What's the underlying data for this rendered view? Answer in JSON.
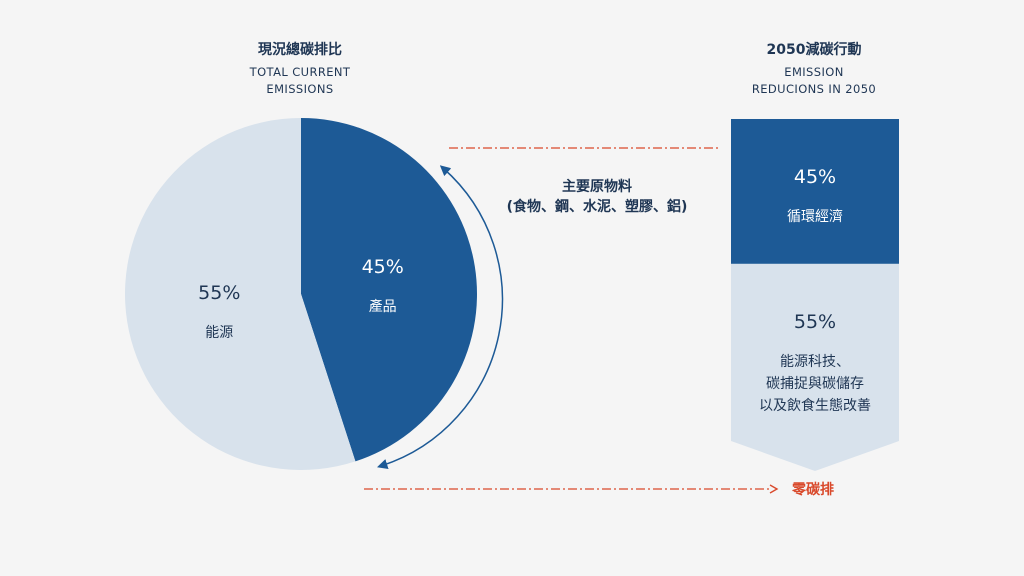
{
  "colors": {
    "dark_blue": "#1d5a96",
    "light_blue": "#d8e2ec",
    "text_dark": "#1f3654",
    "accent_red": "#d9492b",
    "background": "#f5f5f5"
  },
  "left_title": {
    "zh": "現況總碳排比",
    "en_line1": "TOTAL CURRENT",
    "en_line2": "EMISSIONS"
  },
  "right_title": {
    "zh": "2050減碳行動",
    "en_line1": "EMISSION",
    "en_line2": "REDUCIONS IN 2050"
  },
  "middle_label": {
    "line1": "主要原物料",
    "line2": "(食物、鋼、水泥、塑膠、鋁)"
  },
  "zero_label": "零碳排",
  "chart_data": [
    {
      "type": "pie",
      "title": "現況總碳排比 TOTAL CURRENT EMISSIONS",
      "series": [
        {
          "slices": [
            {
              "label": "產品",
              "value": 45,
              "display": "45%",
              "color": "#1d5a96"
            },
            {
              "label": "能源",
              "value": 55,
              "display": "55%",
              "color": "#d8e2ec"
            }
          ]
        }
      ]
    },
    {
      "type": "bar",
      "title": "2050減碳行動 EMISSION REDUCIONS IN 2050",
      "stacked": true,
      "segments": [
        {
          "label_lines": [
            "循環經濟"
          ],
          "value": 45,
          "display": "45%",
          "color": "#1d5a96"
        },
        {
          "label_lines": [
            "能源科技、",
            "碳捕捉與碳儲存",
            "以及飲食生態改善"
          ],
          "value": 55,
          "display": "55%",
          "color": "#d8e2ec"
        }
      ]
    }
  ]
}
